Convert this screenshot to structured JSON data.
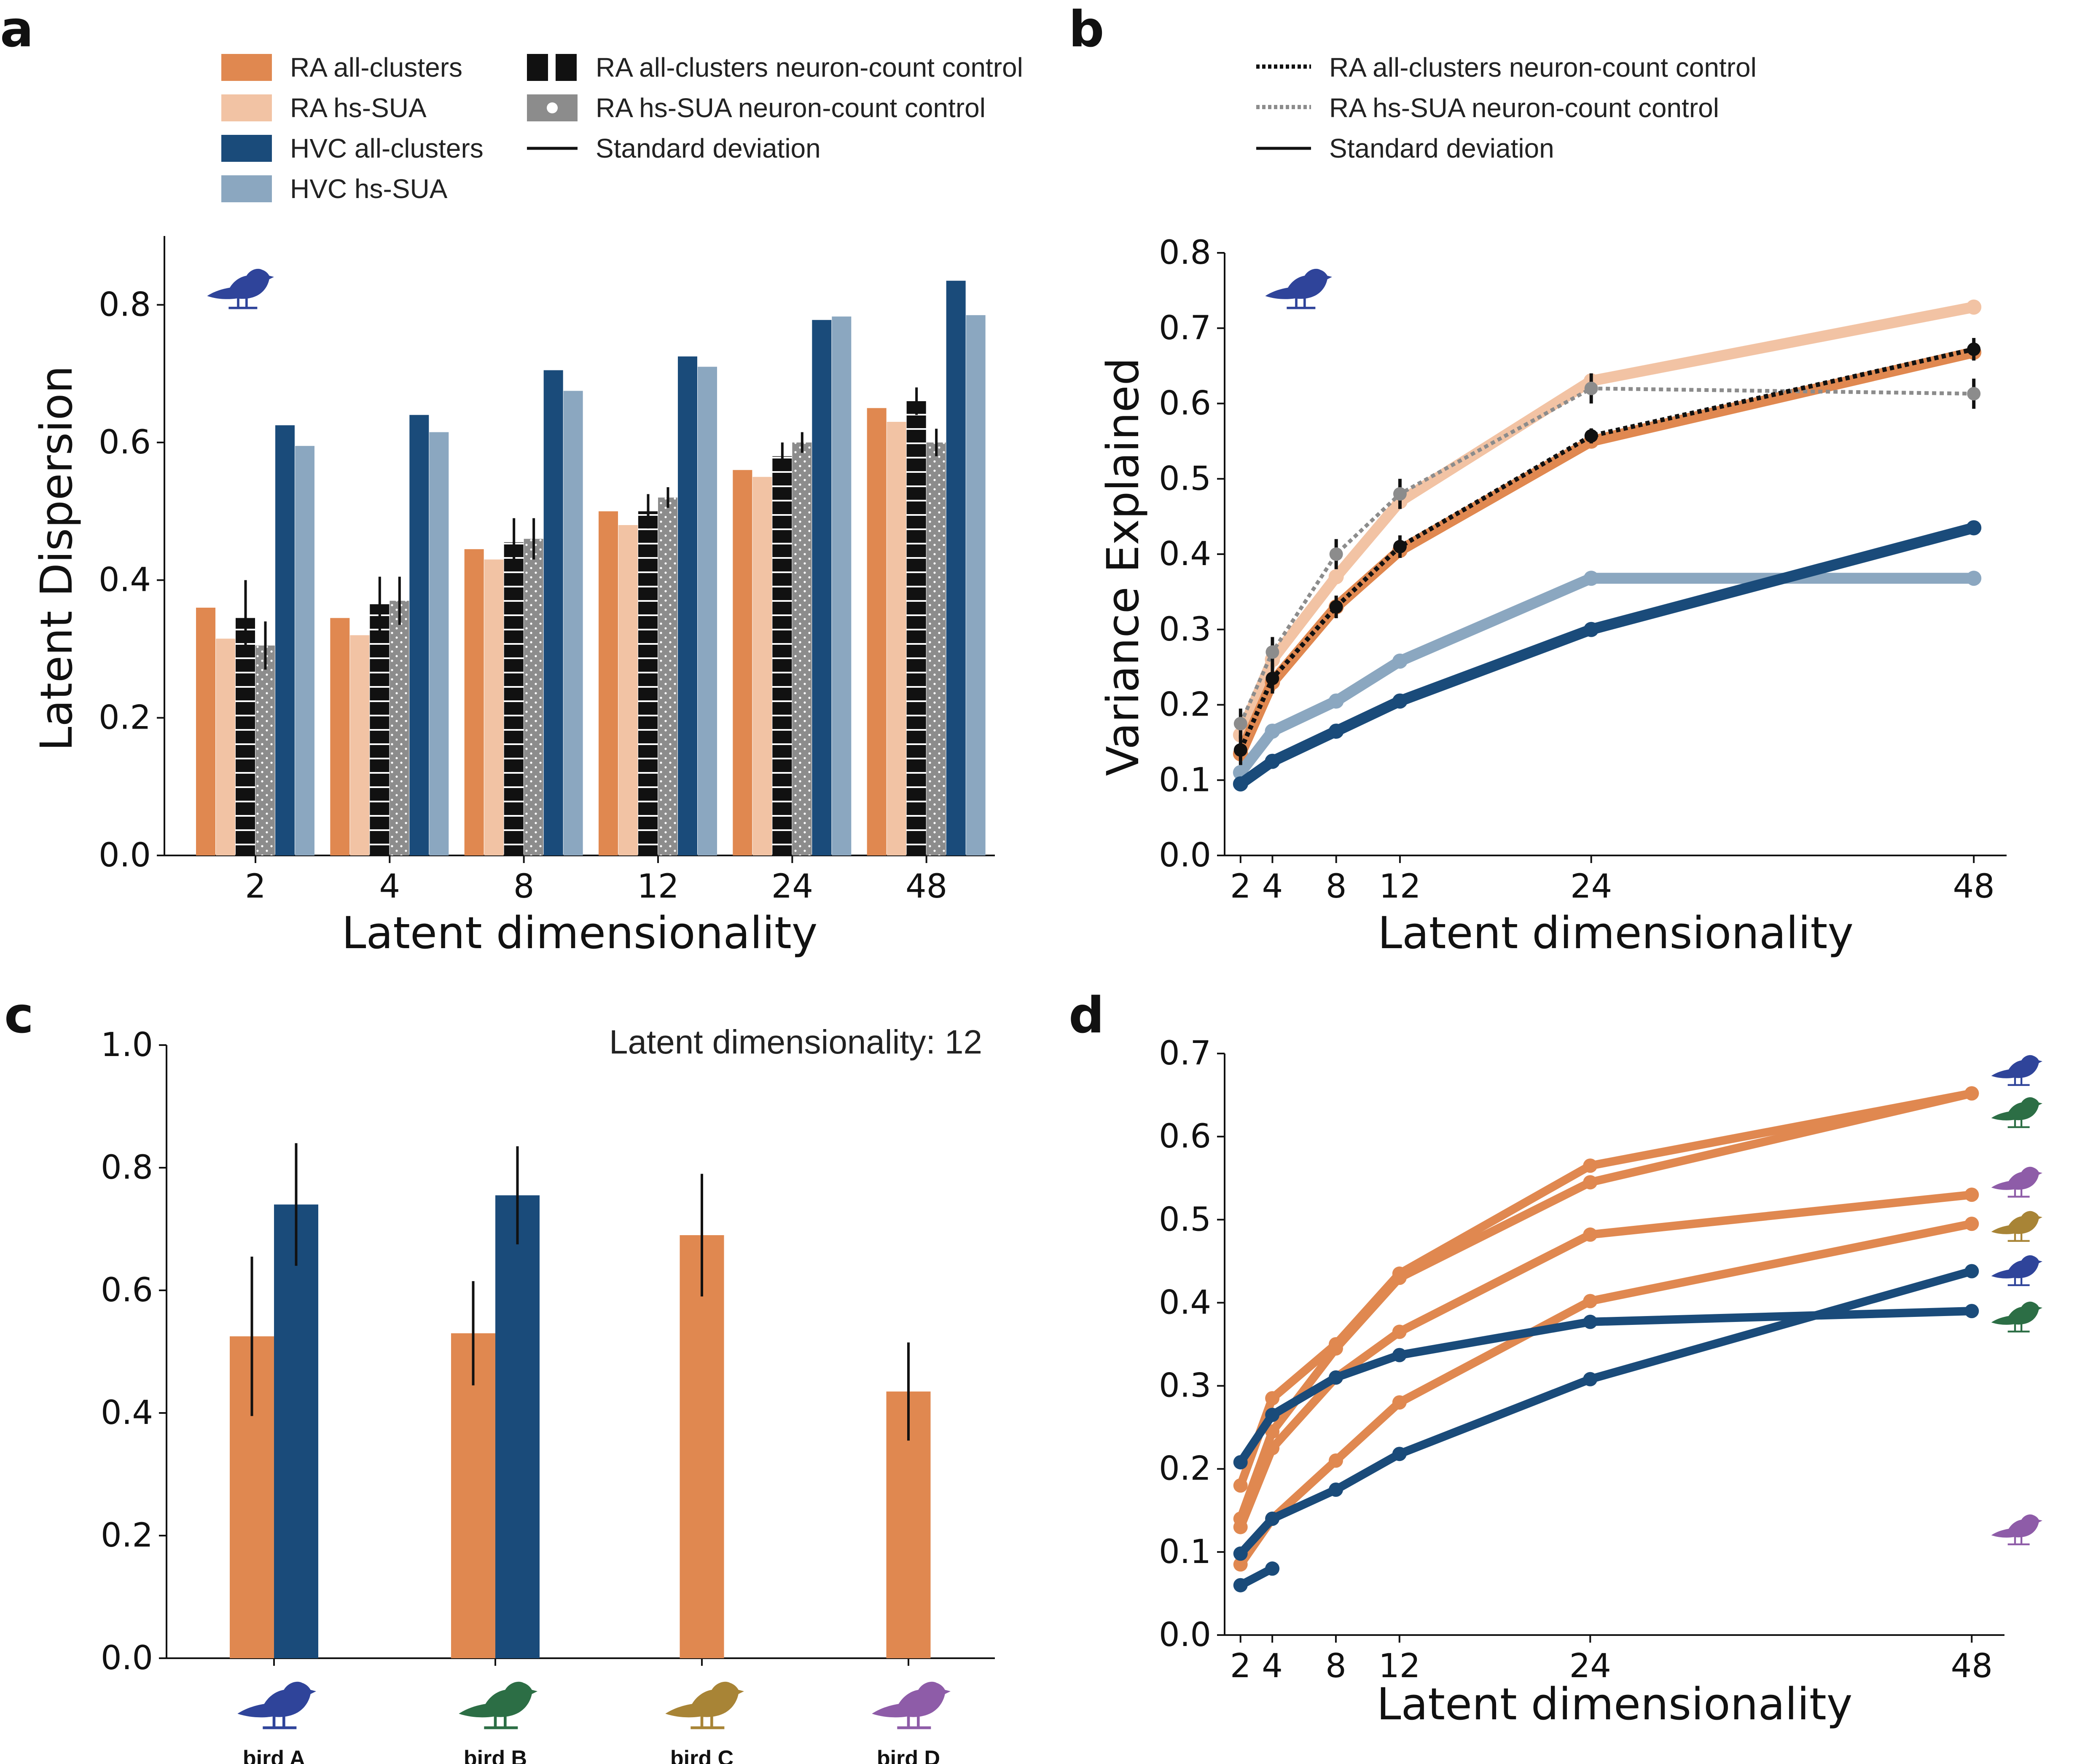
{
  "colors": {
    "ra_all": "#E08850",
    "ra_hs": "#F2C3A4",
    "hvc_all": "#1A4B7A",
    "hvc_hs": "#8BA7C0",
    "ctrl_black": "#111111",
    "ctrl_gray": "#8C8C8C",
    "birdA": "#2F449A",
    "birdB": "#2C6E45",
    "birdC": "#A88436",
    "birdD": "#8E5CA8"
  },
  "panel_labels": [
    "a",
    "b",
    "c",
    "d"
  ],
  "legend_a": {
    "left": [
      "RA all-clusters",
      "RA hs-SUA",
      "HVC all-clusters",
      "HVC hs-SUA"
    ],
    "right": [
      "RA all-clusters neuron-count control",
      "RA hs-SUA neuron-count control",
      "Standard deviation"
    ]
  },
  "legend_b": [
    "RA all-clusters neuron-count control",
    "RA hs-SUA neuron-count control",
    "Standard deviation"
  ],
  "panel_c_note": "Latent dimensionality: 12",
  "chart_data": [
    {
      "panel": "a",
      "type": "bar",
      "xlabel": "Latent dimensionality",
      "ylabel": "Latent Dispersion",
      "ylim": [
        0,
        0.9
      ],
      "yticks": [
        "0.0",
        "0.2",
        "0.4",
        "0.6",
        "0.8"
      ],
      "categories": [
        "2",
        "4",
        "8",
        "12",
        "24",
        "48"
      ],
      "series": [
        {
          "name": "RA all-clusters",
          "values": [
            0.36,
            0.345,
            0.445,
            0.5,
            0.56,
            0.65
          ]
        },
        {
          "name": "RA hs-SUA",
          "values": [
            0.315,
            0.32,
            0.43,
            0.48,
            0.55,
            0.63
          ]
        },
        {
          "name": "RA all-clusters neuron-count control",
          "values": [
            0.345,
            0.365,
            0.455,
            0.5,
            0.58,
            0.66
          ],
          "sd": [
            0.055,
            0.04,
            0.035,
            0.025,
            0.02,
            0.02
          ]
        },
        {
          "name": "RA hs-SUA neuron-count control",
          "values": [
            0.305,
            0.37,
            0.46,
            0.52,
            0.6,
            0.6
          ],
          "sd": [
            0.035,
            0.035,
            0.03,
            0.015,
            0.015,
            0.02
          ]
        },
        {
          "name": "HVC all-clusters",
          "values": [
            0.625,
            0.64,
            0.705,
            0.725,
            0.778,
            0.835
          ]
        },
        {
          "name": "HVC hs-SUA",
          "values": [
            0.595,
            0.615,
            0.675,
            0.71,
            0.783,
            0.785
          ]
        }
      ]
    },
    {
      "panel": "b",
      "type": "line",
      "xlabel": "Latent dimensionality",
      "ylabel": "Variance Explained",
      "xlim": [
        1,
        49
      ],
      "ylim": [
        0,
        0.8
      ],
      "xticks": [
        "2",
        "4",
        "8",
        "12",
        "24",
        "48"
      ],
      "yticks": [
        "0.0",
        "0.1",
        "0.2",
        "0.3",
        "0.4",
        "0.5",
        "0.6",
        "0.7",
        "0.8"
      ],
      "x": [
        2,
        4,
        8,
        12,
        24,
        48
      ],
      "series": [
        {
          "name": "RA hs-SUA",
          "values": [
            0.16,
            0.26,
            0.37,
            0.47,
            0.63,
            0.728
          ]
        },
        {
          "name": "RA all-clusters",
          "values": [
            0.135,
            0.23,
            0.33,
            0.405,
            0.55,
            0.668
          ]
        },
        {
          "name": "HVC hs-SUA",
          "values": [
            0.11,
            0.165,
            0.205,
            0.258,
            0.368,
            0.368
          ]
        },
        {
          "name": "HVC all-clusters",
          "values": [
            0.095,
            0.125,
            0.165,
            0.205,
            0.3,
            0.435
          ]
        },
        {
          "name": "RA hs-SUA neuron-count control",
          "values": [
            0.175,
            0.27,
            0.4,
            0.48,
            0.62,
            0.613
          ],
          "sd": [
            0.02,
            0.02,
            0.02,
            0.02,
            0.02,
            0.02
          ]
        },
        {
          "name": "RA all-clusters neuron-count control",
          "values": [
            0.14,
            0.235,
            0.33,
            0.41,
            0.557,
            0.672
          ],
          "sd": [
            0.02,
            0.02,
            0.015,
            0.015,
            0.01,
            0.015
          ]
        }
      ]
    },
    {
      "panel": "c",
      "type": "bar",
      "ylim": [
        0,
        1.0
      ],
      "yticks": [
        "0.0",
        "0.2",
        "0.4",
        "0.6",
        "0.8",
        "1.0"
      ],
      "categories": [
        "bird A",
        "bird B",
        "bird C",
        "bird D"
      ],
      "series": [
        {
          "name": "RA",
          "values": [
            0.525,
            0.53,
            0.69,
            0.435
          ],
          "sd": [
            0.13,
            0.085,
            0.1,
            0.08
          ]
        },
        {
          "name": "HVC",
          "values": [
            0.74,
            0.755,
            null,
            null
          ],
          "sd": [
            0.1,
            0.08,
            null,
            null
          ]
        }
      ]
    },
    {
      "panel": "d",
      "type": "line",
      "xlabel": "Latent dimensionality",
      "xlim": [
        1,
        49
      ],
      "ylim": [
        0,
        0.7
      ],
      "xticks": [
        "2",
        "4",
        "8",
        "12",
        "24",
        "48"
      ],
      "yticks": [
        "0.0",
        "0.1",
        "0.2",
        "0.3",
        "0.4",
        "0.5",
        "0.6",
        "0.7"
      ],
      "series": [
        {
          "name": "RA bird A",
          "x": [
            2,
            4,
            8,
            12,
            24,
            48
          ],
          "values": [
            0.18,
            0.285,
            0.35,
            0.435,
            0.565,
            0.652
          ]
        },
        {
          "name": "RA bird B",
          "x": [
            2,
            4,
            8,
            12,
            24,
            48
          ],
          "values": [
            0.14,
            0.245,
            0.345,
            0.43,
            0.545,
            0.652
          ]
        },
        {
          "name": "RA bird D",
          "x": [
            2,
            4,
            8,
            12,
            24,
            48
          ],
          "values": [
            0.13,
            0.225,
            0.31,
            0.365,
            0.482,
            0.53
          ]
        },
        {
          "name": "RA bird C",
          "x": [
            2,
            4,
            8,
            12,
            24,
            48
          ],
          "values": [
            0.085,
            0.14,
            0.21,
            0.28,
            0.402,
            0.495
          ]
        },
        {
          "name": "HVC bird B",
          "x": [
            2,
            4,
            8,
            12,
            24,
            48
          ],
          "values": [
            0.208,
            0.265,
            0.31,
            0.337,
            0.377,
            0.39
          ]
        },
        {
          "name": "HVC bird A",
          "x": [
            2,
            4,
            8,
            12,
            24,
            48
          ],
          "values": [
            0.098,
            0.14,
            0.175,
            0.218,
            0.308,
            0.438
          ]
        },
        {
          "name": "HVC bird D",
          "x": [
            2,
            4
          ],
          "values": [
            0.06,
            0.08
          ]
        }
      ]
    }
  ]
}
